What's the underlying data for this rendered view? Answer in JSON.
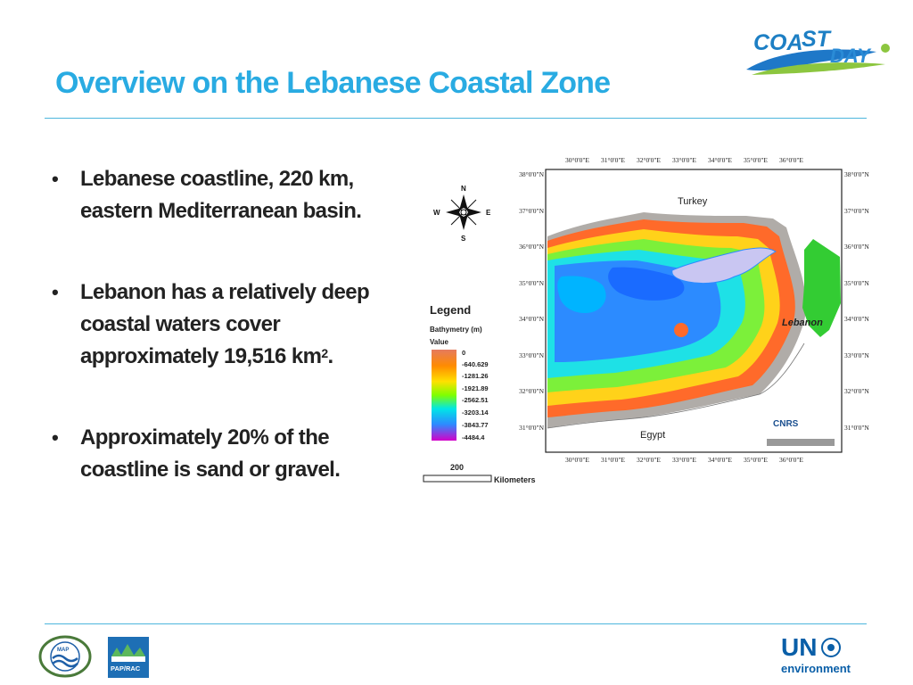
{
  "slide": {
    "title": "Overview on the Lebanese Coastal Zone",
    "bullets": [
      {
        "text": "Lebanese coastline, 220 km, eastern Mediterranean basin."
      },
      {
        "text": "Lebanon has a relatively deep coastal waters cover approximately 19,516 km",
        "sup": "2",
        "tail": "."
      },
      {
        "text": "Approximately 20% of the coastline is sand or gravel."
      }
    ]
  },
  "map": {
    "compass": {
      "n": "N",
      "s": "S",
      "e": "E",
      "w": "W"
    },
    "legend_title": "Legend",
    "legend_subtitle": "Bathymetry (m)",
    "legend_value_label": "Value",
    "legend_values": [
      "0",
      "-640.629",
      "-1281.26",
      "-1921.89",
      "-2562.51",
      "-3203.14",
      "-3843.77",
      "-4484.4"
    ],
    "scale_value": "200",
    "scale_unit": "Kilometers",
    "lon_labels": [
      "30°0'0\"E",
      "31°0'0\"E",
      "32°0'0\"E",
      "33°0'0\"E",
      "34°0'0\"E",
      "35°0'0\"E",
      "36°0'0\"E"
    ],
    "lat_labels": [
      "38°0'0\"N",
      "37°0'0\"N",
      "36°0'0\"N",
      "35°0'0\"N",
      "34°0'0\"N",
      "33°0'0\"N",
      "32°0'0\"N",
      "31°0'0\"N"
    ],
    "countries": {
      "turkey": "Turkey",
      "egypt": "Egypt",
      "lebanon": "Lebanon"
    },
    "source": "CNRS",
    "colors": {
      "shallow": "#E57A5E",
      "mid": "#FFE000",
      "deep": "#2C8BFF",
      "deepest": "#D400C8",
      "land": "#C8E6C8",
      "lebanon": "#33CC33"
    }
  },
  "logos": {
    "coastday": "COASTDAY",
    "map": "MAP",
    "pap": "PAP/RAC",
    "un_top": "UN",
    "un_bottom": "environment"
  }
}
